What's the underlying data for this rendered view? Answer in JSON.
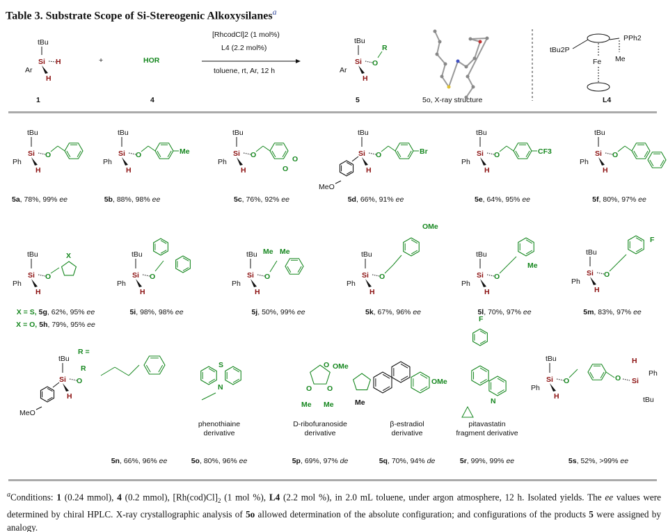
{
  "title": {
    "text": "Table 3. Substrate Scope of Si-Stereogenic Alkoxysilanes",
    "footnote_mark": "a"
  },
  "atoms": {
    "tBu": "tBu",
    "Si": "Si",
    "H": "H",
    "Ph": "Ph",
    "Ar": "Ar",
    "O": "O",
    "R": "R",
    "MeO": "MeO",
    "Me": "Me",
    "OMe": "OMe",
    "F": "F",
    "N": "N",
    "S": "S",
    "X": "X"
  },
  "scheme": {
    "reactant1_label": "1",
    "plus": "+",
    "reagent": "HOR",
    "reagent_label": "4",
    "conditions_above": [
      "[RhcodCl]2 (1 mol%)",
      "L4 (2.2 mol%)"
    ],
    "conditions_below": "toluene, rt, Ar, 12 h",
    "product_label": "5",
    "xray_label": "5o, X-ray structure",
    "ligand_label": "L4",
    "ligand_atoms": {
      "tBu2P": "tBu2P",
      "PPh2": "PPh2",
      "Fe": "Fe",
      "Me": "Me"
    },
    "colors": {
      "si_h": "#8b1010",
      "new_group": "#16871f"
    }
  },
  "compounds": [
    {
      "id": "5a",
      "yield": "78%",
      "sel": "99%",
      "type": "ee",
      "sub": ""
    },
    {
      "id": "5b",
      "yield": "88%",
      "sel": "98%",
      "type": "ee",
      "sub": "Me"
    },
    {
      "id": "5c",
      "yield": "76%",
      "sel": "92%",
      "type": "ee",
      "sub": ""
    },
    {
      "id": "5d",
      "yield": "66%",
      "sel": "91%",
      "type": "ee",
      "sub": "Br"
    },
    {
      "id": "5e",
      "yield": "64%",
      "sel": "95%",
      "type": "ee",
      "sub": "CF3"
    },
    {
      "id": "5f",
      "yield": "80%",
      "sel": "97%",
      "type": "ee",
      "sub": ""
    },
    {
      "id": "5g",
      "yield": "62%",
      "sel": "95%",
      "type": "ee",
      "prefix": "X = S,"
    },
    {
      "id": "5h",
      "yield": "79%",
      "sel": "95%",
      "type": "ee",
      "prefix": "X = O,"
    },
    {
      "id": "5i",
      "yield": "98%",
      "sel": "98%",
      "type": "ee"
    },
    {
      "id": "5j",
      "yield": "50%",
      "sel": "99%",
      "type": "ee"
    },
    {
      "id": "5k",
      "yield": "67%",
      "sel": "96%",
      "type": "ee",
      "sub": "OMe"
    },
    {
      "id": "5l",
      "yield": "70%",
      "sel": "97%",
      "type": "ee",
      "sub": "Me"
    },
    {
      "id": "5m",
      "yield": "83%",
      "sel": "97%",
      "type": "ee",
      "sub": "F"
    },
    {
      "id": "5n",
      "yield": "66%",
      "sel": "96%",
      "type": "ee"
    },
    {
      "id": "5o",
      "yield": "80%",
      "sel": "96%",
      "type": "ee",
      "desc": [
        "phenothiaine",
        "derivative"
      ]
    },
    {
      "id": "5p",
      "yield": "69%",
      "sel": "97%",
      "type": "de",
      "desc": [
        "D-ribofuranoside",
        "derivative"
      ]
    },
    {
      "id": "5q",
      "yield": "70%",
      "sel": "94%",
      "type": "de",
      "desc": [
        "β-estradiol",
        "derivative"
      ]
    },
    {
      "id": "5r",
      "yield": "99%",
      "sel": "99%",
      "type": "ee",
      "desc": [
        "pitavastatin",
        "fragment derivative"
      ]
    },
    {
      "id": "5s",
      "yield": "52%",
      "sel": ">99%",
      "type": "ee"
    }
  ],
  "r_equals": "R =",
  "footnote": {
    "mark": "a",
    "segments": [
      {
        "t": "Conditions: "
      },
      {
        "t": "1",
        "b": true
      },
      {
        "t": " (0.24 mmol), "
      },
      {
        "t": "4",
        "b": true
      },
      {
        "t": " (0.2 mmol), [Rh(cod)Cl]"
      },
      {
        "t": "2",
        "sub": true
      },
      {
        "t": " (1 mol %), "
      },
      {
        "t": "L4",
        "b": true
      },
      {
        "t": " (2.2 mol %), in 2.0 mL toluene, under argon atmosphere, 12 h. Isolated yields. The "
      },
      {
        "t": "ee",
        "i": true
      },
      {
        "t": " values were determined by chiral HPLC. X-ray crystallographic analysis of "
      },
      {
        "t": "5o",
        "b": true
      },
      {
        "t": " allowed determination of the absolute configuration; and configurations of the products "
      },
      {
        "t": "5",
        "b": true
      },
      {
        "t": " were assigned by analogy."
      }
    ]
  }
}
